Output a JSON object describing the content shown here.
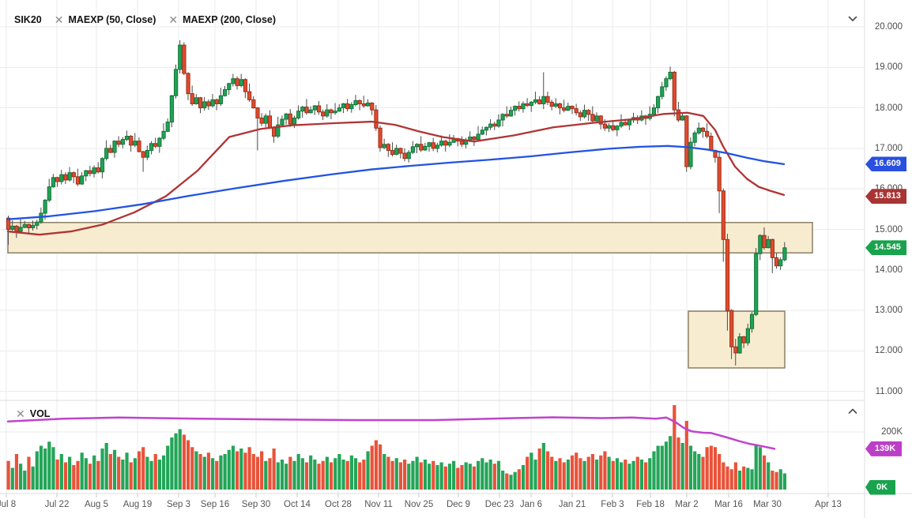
{
  "legend": {
    "symbol": "SIK20",
    "indicators": [
      {
        "label": "MAEXP (50, Close)"
      },
      {
        "label": "MAEXP (200, Close)"
      }
    ]
  },
  "volume_legend": {
    "label": "VOL"
  },
  "price_axis": {
    "ticks": [
      {
        "label": "20.000",
        "value": 20
      },
      {
        "label": "19.000",
        "value": 19
      },
      {
        "label": "18.000",
        "value": 18
      },
      {
        "label": "17.000",
        "value": 17
      },
      {
        "label": "16.000",
        "value": 16
      },
      {
        "label": "15.000",
        "value": 15
      },
      {
        "label": "14.000",
        "value": 14
      },
      {
        "label": "13.000",
        "value": 13
      },
      {
        "label": "12.000",
        "value": 12
      },
      {
        "label": "11.000",
        "value": 11
      }
    ],
    "badges": [
      {
        "name": "ma200-price-badge",
        "label": "16.609",
        "value": 16.609,
        "color": "#2A50DF"
      },
      {
        "name": "ma50-price-badge",
        "label": "15.813",
        "value": 15.813,
        "color": "#A83434"
      },
      {
        "name": "last-price-badge",
        "label": "14.545",
        "value": 14.545,
        "color": "#18A34C"
      }
    ]
  },
  "volume_axis": {
    "ticks": [
      {
        "label": "200K",
        "value": 200
      }
    ],
    "badges": [
      {
        "name": "volume-ma-badge",
        "label": "139K",
        "value": 139,
        "color": "#BB3FC7"
      },
      {
        "name": "volume-zero-badge",
        "label": "0K",
        "value": 0,
        "color": "#18A34C"
      }
    ]
  },
  "chart_data": {
    "type": "candlestick",
    "symbol": "SIK20",
    "ylim": [
      11,
      20
    ],
    "volume_ylim_k": [
      0,
      260
    ],
    "grid": true,
    "time_ticks": [
      {
        "label": "Jul 8",
        "x": 8
      },
      {
        "label": "Jul 22",
        "x": 72
      },
      {
        "label": "Aug 5",
        "x": 122
      },
      {
        "label": "Aug 19",
        "x": 174
      },
      {
        "label": "Sep 3",
        "x": 226
      },
      {
        "label": "Sep 16",
        "x": 272
      },
      {
        "label": "Sep 30",
        "x": 324
      },
      {
        "label": "Oct 14",
        "x": 376
      },
      {
        "label": "Oct 28",
        "x": 428
      },
      {
        "label": "Nov 11",
        "x": 479
      },
      {
        "label": "Nov 25",
        "x": 530
      },
      {
        "label": "Dec 9",
        "x": 580
      },
      {
        "label": "Dec 23",
        "x": 632
      },
      {
        "label": "Jan 6",
        "x": 672
      },
      {
        "label": "Jan 21",
        "x": 724
      },
      {
        "label": "Feb 3",
        "x": 775
      },
      {
        "label": "Feb 18",
        "x": 823
      },
      {
        "label": "Mar 2",
        "x": 869
      },
      {
        "label": "Mar 16",
        "x": 922
      },
      {
        "label": "Mar 30",
        "x": 971
      },
      {
        "label": "Apr 13",
        "x": 1048
      }
    ],
    "first_open": 15.28,
    "closes": [
      15.0,
      15.08,
      14.95,
      15.05,
      15.12,
      15.04,
      15.1,
      15.18,
      15.4,
      15.72,
      16.05,
      16.28,
      16.18,
      16.35,
      16.22,
      16.4,
      16.3,
      16.12,
      16.32,
      16.45,
      16.38,
      16.52,
      16.42,
      16.75,
      17.0,
      16.9,
      17.18,
      17.1,
      17.22,
      17.3,
      17.08,
      17.18,
      16.92,
      16.78,
      16.95,
      17.12,
      17.05,
      17.25,
      17.42,
      17.65,
      18.3,
      18.95,
      19.55,
      18.85,
      18.35,
      18.1,
      18.25,
      18.0,
      18.15,
      18.05,
      18.2,
      18.1,
      18.3,
      18.45,
      18.6,
      18.72,
      18.55,
      18.7,
      18.4,
      18.2,
      18.0,
      17.75,
      17.62,
      17.8,
      17.52,
      17.3,
      17.58,
      17.72,
      17.85,
      17.6,
      17.75,
      17.92,
      18.02,
      17.88,
      17.95,
      18.05,
      17.9,
      17.8,
      17.95,
      17.88,
      17.92,
      18.0,
      18.1,
      17.98,
      18.08,
      18.18,
      18.1,
      18.05,
      18.12,
      17.95,
      17.5,
      17.02,
      17.1,
      16.95,
      16.85,
      17.0,
      16.88,
      16.75,
      16.9,
      17.04,
      17.1,
      16.96,
      17.05,
      17.14,
      17.0,
      17.08,
      17.18,
      17.08,
      17.15,
      17.24,
      17.18,
      17.1,
      17.2,
      17.28,
      17.22,
      17.35,
      17.45,
      17.52,
      17.6,
      17.55,
      17.7,
      17.84,
      17.8,
      17.94,
      18.04,
      17.98,
      18.1,
      18.06,
      18.14,
      18.2,
      18.1,
      18.28,
      18.14,
      18.04,
      18.1,
      18.0,
      17.94,
      18.04,
      17.98,
      17.88,
      17.78,
      17.94,
      17.84,
      17.68,
      17.8,
      17.6,
      17.5,
      17.56,
      17.46,
      17.55,
      17.64,
      17.58,
      17.7,
      17.76,
      17.7,
      17.8,
      17.74,
      17.84,
      18.0,
      18.28,
      18.52,
      18.72,
      18.88,
      17.95,
      17.7,
      17.8,
      16.55,
      17.15,
      17.38,
      17.5,
      17.42,
      17.3,
      16.95,
      16.78,
      15.95,
      14.75,
      13.0,
      12.1,
      11.95,
      12.35,
      12.2,
      12.55,
      12.9,
      14.4,
      14.85,
      14.55,
      14.75,
      14.3,
      14.1,
      14.25,
      14.545
    ],
    "wick_up_pattern": [
      0.06,
      0.14,
      0.03,
      0.2,
      0.09,
      0.02,
      0.12
    ],
    "wick_down_pattern": [
      0.1,
      0.04,
      0.16,
      0.05,
      0.02,
      0.13,
      0.07
    ],
    "wick_overrides": {
      "0": {
        "l": 14.62
      },
      "33": {
        "l": 16.42
      },
      "42": {
        "h": 19.67
      },
      "43": {
        "h": 19.62
      },
      "61": {
        "l": 16.95
      },
      "131": {
        "h": 18.88
      },
      "162": {
        "h": 19.02
      },
      "174": {
        "l": 15.4
      },
      "175": {
        "l": 14.2
      },
      "176": {
        "l": 12.5
      },
      "177": {
        "l": 11.8
      },
      "178": {
        "l": 11.64
      },
      "187": {
        "l": 13.92
      }
    },
    "volumes_k": [
      95,
      70,
      120,
      85,
      60,
      110,
      75,
      130,
      150,
      140,
      165,
      145,
      100,
      120,
      90,
      110,
      80,
      95,
      125,
      105,
      85,
      115,
      95,
      140,
      160,
      120,
      135,
      110,
      100,
      125,
      90,
      105,
      130,
      145,
      110,
      95,
      120,
      100,
      115,
      150,
      180,
      195,
      210,
      190,
      170,
      145,
      130,
      120,
      110,
      125,
      105,
      95,
      115,
      120,
      135,
      150,
      130,
      140,
      125,
      145,
      120,
      110,
      130,
      95,
      105,
      140,
      90,
      100,
      85,
      110,
      95,
      120,
      105,
      90,
      115,
      100,
      85,
      95,
      110,
      90,
      105,
      120,
      100,
      95,
      115,
      105,
      90,
      100,
      130,
      150,
      170,
      155,
      120,
      110,
      95,
      105,
      90,
      100,
      85,
      95,
      110,
      90,
      100,
      85,
      95,
      80,
      90,
      75,
      85,
      95,
      70,
      80,
      90,
      85,
      75,
      95,
      105,
      90,
      100,
      85,
      95,
      60,
      50,
      45,
      55,
      65,
      80,
      110,
      125,
      100,
      140,
      160,
      130,
      110,
      95,
      105,
      90,
      100,
      115,
      125,
      105,
      95,
      110,
      120,
      100,
      115,
      130,
      110,
      95,
      105,
      90,
      100,
      85,
      95,
      110,
      100,
      90,
      105,
      130,
      150,
      150,
      165,
      185,
      297,
      180,
      160,
      240,
      150,
      130,
      120,
      110,
      145,
      150,
      145,
      120,
      90,
      75,
      65,
      90,
      60,
      75,
      70,
      65,
      150,
      145,
      115,
      90,
      60,
      55,
      65,
      50
    ],
    "ma50_points": [
      [
        10,
        14.95
      ],
      [
        50,
        14.87
      ],
      [
        90,
        14.95
      ],
      [
        130,
        15.12
      ],
      [
        170,
        15.42
      ],
      [
        210,
        15.82
      ],
      [
        250,
        16.45
      ],
      [
        290,
        17.28
      ],
      [
        330,
        17.48
      ],
      [
        370,
        17.57
      ],
      [
        420,
        17.62
      ],
      [
        470,
        17.66
      ],
      [
        500,
        17.58
      ],
      [
        530,
        17.42
      ],
      [
        560,
        17.28
      ],
      [
        600,
        17.17
      ],
      [
        650,
        17.32
      ],
      [
        700,
        17.52
      ],
      [
        750,
        17.63
      ],
      [
        800,
        17.72
      ],
      [
        840,
        17.85
      ],
      [
        870,
        17.88
      ],
      [
        890,
        17.8
      ],
      [
        905,
        17.45
      ],
      [
        915,
        17.05
      ],
      [
        930,
        16.55
      ],
      [
        945,
        16.25
      ],
      [
        960,
        16.05
      ],
      [
        975,
        15.95
      ],
      [
        992,
        15.85
      ]
    ],
    "ma200_points": [
      [
        10,
        15.25
      ],
      [
        60,
        15.32
      ],
      [
        120,
        15.45
      ],
      [
        180,
        15.62
      ],
      [
        240,
        15.83
      ],
      [
        300,
        16.02
      ],
      [
        360,
        16.2
      ],
      [
        420,
        16.36
      ],
      [
        470,
        16.48
      ],
      [
        520,
        16.57
      ],
      [
        570,
        16.65
      ],
      [
        620,
        16.72
      ],
      [
        670,
        16.8
      ],
      [
        720,
        16.9
      ],
      [
        770,
        16.99
      ],
      [
        810,
        17.04
      ],
      [
        845,
        17.06
      ],
      [
        870,
        17.03
      ],
      [
        895,
        16.97
      ],
      [
        920,
        16.88
      ],
      [
        945,
        16.77
      ],
      [
        968,
        16.68
      ],
      [
        992,
        16.61
      ]
    ],
    "volume_ma_points_k": [
      [
        10,
        238
      ],
      [
        80,
        248
      ],
      [
        150,
        252
      ],
      [
        250,
        248
      ],
      [
        350,
        245
      ],
      [
        450,
        243
      ],
      [
        550,
        243
      ],
      [
        650,
        250
      ],
      [
        700,
        253
      ],
      [
        760,
        250
      ],
      [
        800,
        252
      ],
      [
        830,
        248
      ],
      [
        843,
        252
      ],
      [
        855,
        235
      ],
      [
        865,
        215
      ],
      [
        875,
        202
      ],
      [
        890,
        197
      ],
      [
        900,
        196
      ],
      [
        920,
        180
      ],
      [
        935,
        167
      ],
      [
        950,
        156
      ],
      [
        965,
        148
      ],
      [
        980,
        139
      ]
    ],
    "zones": [
      {
        "name": "support-zone-band",
        "x1": 10,
        "x2": 1028,
        "price_top": 15.17,
        "price_bottom": 14.42
      },
      {
        "name": "bottom-zone-box",
        "x1": 871,
        "x2": 993,
        "price_top": 12.98,
        "price_bottom": 11.58
      }
    ],
    "colors": {
      "up": "#1FA355",
      "up_border": "#14753A",
      "down": "#E24B2C",
      "down_border": "#99301D",
      "wick": "#4a4a4a",
      "ma50": "#B13434",
      "ma200": "#2253E3",
      "vol_ma": "#C143CD",
      "vol_up": "#23A558",
      "vol_down": "#E8533A",
      "zone_fill": "#F7EACC",
      "zone_border": "#8B8066",
      "grid": "#EBEBEB",
      "separator": "#DCDCDC",
      "tickmark": "#C9C9C9",
      "axis_text": "#4C4C4C"
    }
  }
}
